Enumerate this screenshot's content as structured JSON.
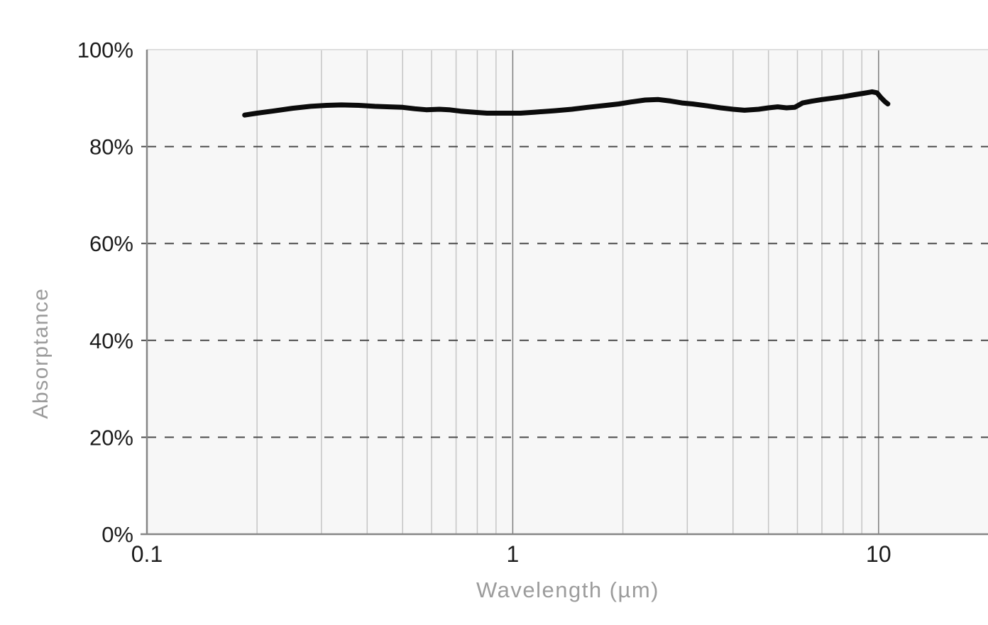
{
  "chart_data": {
    "type": "line",
    "title": "",
    "xlabel": "Wavelength (µm)",
    "ylabel": "Absorptance",
    "x_scale": "log",
    "xlim": [
      0.1,
      20
    ],
    "ylim": [
      0,
      100
    ],
    "grid": "on",
    "legend": "none",
    "x_ticks": [
      {
        "value": 0.1,
        "label": "0.1"
      },
      {
        "value": 1,
        "label": "1"
      },
      {
        "value": 10,
        "label": "10"
      }
    ],
    "y_ticks": [
      {
        "value": 0,
        "label": "0%"
      },
      {
        "value": 20,
        "label": "20%"
      },
      {
        "value": 40,
        "label": "40%"
      },
      {
        "value": 60,
        "label": "60%"
      },
      {
        "value": 80,
        "label": "80%"
      },
      {
        "value": 100,
        "label": "100%"
      }
    ],
    "x_minor_gridlines": [
      0.2,
      0.3,
      0.4,
      0.5,
      0.6,
      0.7,
      0.8,
      0.9,
      2,
      3,
      4,
      5,
      6,
      7,
      8,
      9
    ],
    "x_major_gridlines": [
      1,
      10
    ],
    "y_dashed_gridlines": [
      20,
      40,
      60,
      80
    ],
    "series": [
      {
        "name": "Absorptance",
        "units": {
          "x": "µm",
          "y": "%"
        },
        "points": [
          [
            0.185,
            86.5
          ],
          [
            0.2,
            86.9
          ],
          [
            0.22,
            87.3
          ],
          [
            0.25,
            87.9
          ],
          [
            0.28,
            88.3
          ],
          [
            0.31,
            88.5
          ],
          [
            0.34,
            88.6
          ],
          [
            0.38,
            88.5
          ],
          [
            0.42,
            88.3
          ],
          [
            0.46,
            88.2
          ],
          [
            0.5,
            88.1
          ],
          [
            0.54,
            87.8
          ],
          [
            0.58,
            87.6
          ],
          [
            0.63,
            87.7
          ],
          [
            0.67,
            87.6
          ],
          [
            0.72,
            87.3
          ],
          [
            0.78,
            87.1
          ],
          [
            0.85,
            86.9
          ],
          [
            0.95,
            86.9
          ],
          [
            1.05,
            86.9
          ],
          [
            1.15,
            87.1
          ],
          [
            1.3,
            87.4
          ],
          [
            1.45,
            87.7
          ],
          [
            1.6,
            88.1
          ],
          [
            1.8,
            88.5
          ],
          [
            1.95,
            88.8
          ],
          [
            2.1,
            89.2
          ],
          [
            2.3,
            89.6
          ],
          [
            2.5,
            89.7
          ],
          [
            2.7,
            89.4
          ],
          [
            2.9,
            89.0
          ],
          [
            3.1,
            88.8
          ],
          [
            3.4,
            88.4
          ],
          [
            3.7,
            88.0
          ],
          [
            4.0,
            87.7
          ],
          [
            4.3,
            87.5
          ],
          [
            4.7,
            87.7
          ],
          [
            5.0,
            88.0
          ],
          [
            5.3,
            88.2
          ],
          [
            5.6,
            88.0
          ],
          [
            5.9,
            88.1
          ],
          [
            6.2,
            89.0
          ],
          [
            6.6,
            89.4
          ],
          [
            7.0,
            89.7
          ],
          [
            7.5,
            90.0
          ],
          [
            8.0,
            90.3
          ],
          [
            8.6,
            90.7
          ],
          [
            9.1,
            91.0
          ],
          [
            9.6,
            91.3
          ],
          [
            9.9,
            91.1
          ],
          [
            10.15,
            90.1
          ],
          [
            10.4,
            89.3
          ],
          [
            10.6,
            88.8
          ]
        ]
      }
    ],
    "colors": {
      "line": "#0b0b0b",
      "plot_background": "#f7f7f7",
      "minor_gridline": "#c5c5c5",
      "major_gridline": "#7d7d7d",
      "axis_line": "#868686",
      "plot_border": "#dedede",
      "dashed_gridline": "#4a4a4a",
      "tick_label": "#1c1c1c",
      "axis_title": "#9c9c9c"
    }
  }
}
